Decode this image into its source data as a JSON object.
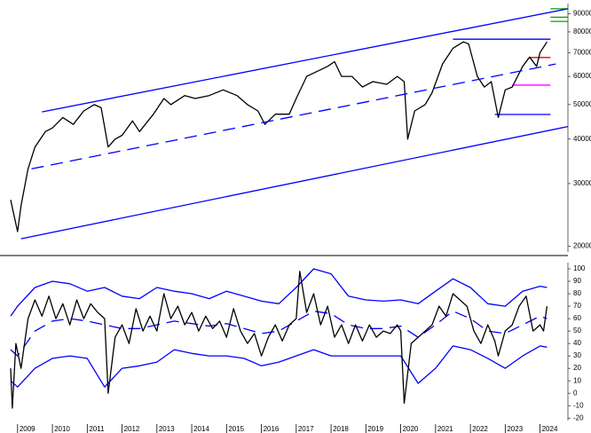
{
  "chart_data": [
    {
      "type": "line",
      "log_y": true,
      "xlim": [
        2008.75,
        2024.8
      ],
      "ylim": [
        19500,
        95000
      ],
      "yticks": [
        20000,
        30000,
        40000,
        50000,
        60000,
        70000,
        80000,
        90000
      ],
      "series": [
        {
          "color": "#000000",
          "dashed": false,
          "width": 1.3,
          "x": [
            2008.8,
            2009.0,
            2009.1,
            2009.3,
            2009.5,
            2009.8,
            2010.0,
            2010.3,
            2010.6,
            2010.9,
            2011.2,
            2011.4,
            2011.6,
            2011.8,
            2012.0,
            2012.3,
            2012.5,
            2012.9,
            2013.2,
            2013.4,
            2013.8,
            2014.1,
            2014.5,
            2014.9,
            2015.3,
            2015.6,
            2015.9,
            2016.1,
            2016.4,
            2016.8,
            2017.0,
            2017.3,
            2017.6,
            2017.9,
            2018.1,
            2018.3,
            2018.6,
            2018.9,
            2019.2,
            2019.6,
            2019.9,
            2020.1,
            2020.2,
            2020.4,
            2020.7,
            2020.9,
            2021.2,
            2021.5,
            2021.8,
            2021.95,
            2022.2,
            2022.4,
            2022.6,
            2022.8,
            2023.0,
            2023.2,
            2023.5,
            2023.7,
            2023.9,
            2024.0,
            2024.2
          ],
          "values": [
            27000,
            22000,
            26000,
            33000,
            38000,
            42000,
            43000,
            46000,
            44000,
            48000,
            50000,
            49000,
            38000,
            40000,
            41000,
            45000,
            42000,
            47000,
            52000,
            50000,
            53000,
            52000,
            53000,
            55000,
            53000,
            50000,
            48000,
            44000,
            47000,
            47000,
            52000,
            60000,
            62000,
            64000,
            66000,
            60000,
            60000,
            56000,
            58000,
            57000,
            60000,
            58000,
            40000,
            48000,
            50000,
            54000,
            65000,
            72000,
            75000,
            74000,
            60000,
            56000,
            58000,
            46000,
            55000,
            56000,
            64000,
            68000,
            64000,
            70000,
            75000
          ]
        },
        {
          "color": "#0000ff",
          "dashed": false,
          "width": 1.3,
          "x": [
            2009.7,
            2024.8
          ],
          "values": [
            47700,
            92900
          ]
        },
        {
          "color": "#0000ff",
          "dashed": false,
          "width": 1.3,
          "x": [
            2009.1,
            2024.8
          ],
          "values": [
            21000,
            43400
          ]
        },
        {
          "color": "#0000ff",
          "dashed": true,
          "width": 1.3,
          "x": [
            2009.4,
            2024.45
          ],
          "values": [
            33000,
            65000
          ]
        }
      ],
      "levels": [
        {
          "value": 76300,
          "xlim": [
            2021.5,
            2024.3
          ],
          "color": "#0000ff"
        },
        {
          "value": 67800,
          "xlim": [
            2023.7,
            2024.3
          ],
          "color": "#ff0000"
        },
        {
          "value": 56700,
          "xlim": [
            2023.2,
            2024.3
          ],
          "color": "#ff00ff"
        },
        {
          "value": 46900,
          "xlim": [
            2022.7,
            2024.3
          ],
          "color": "#0000ff"
        },
        {
          "value": 92900,
          "xlim": [
            2024.3,
            2024.8
          ],
          "color": "#00a000"
        },
        {
          "value": 88000,
          "xlim": [
            2024.3,
            2024.8
          ],
          "color": "#00a000"
        },
        {
          "value": 85600,
          "xlim": [
            2024.3,
            2024.8
          ],
          "color": "#00a000"
        }
      ]
    },
    {
      "type": "line",
      "log_y": false,
      "xlim": [
        2008.75,
        2024.8
      ],
      "ylim": [
        -22,
        105
      ],
      "yticks": [
        -20,
        -10,
        0,
        10,
        20,
        30,
        40,
        50,
        60,
        70,
        80,
        90,
        100
      ],
      "xticks": [
        2009,
        2010,
        2011,
        2012,
        2013,
        2014,
        2015,
        2016,
        2017,
        2018,
        2019,
        2020,
        2021,
        2022,
        2023,
        2024
      ],
      "series": [
        {
          "color": "#0000ff",
          "dashed": false,
          "width": 1.3,
          "x": [
            2008.8,
            2009.0,
            2009.5,
            2010,
            2010.5,
            2011,
            2011.5,
            2012,
            2012.5,
            2013,
            2013.5,
            2014,
            2014.5,
            2015,
            2015.5,
            2016,
            2016.5,
            2017,
            2017.5,
            2018,
            2018.5,
            2019,
            2019.5,
            2020,
            2020.5,
            2021,
            2021.5,
            2022,
            2022.5,
            2023,
            2023.5,
            2024,
            2024.2
          ],
          "values": [
            62,
            70,
            85,
            90,
            88,
            82,
            85,
            78,
            76,
            85,
            82,
            80,
            76,
            82,
            78,
            74,
            72,
            85,
            100,
            96,
            78,
            75,
            74,
            75,
            72,
            82,
            92,
            85,
            72,
            70,
            82,
            86,
            85
          ]
        },
        {
          "color": "#0000ff",
          "dashed": true,
          "width": 1.3,
          "x": [
            2008.8,
            2009.0,
            2009.5,
            2010,
            2010.5,
            2011,
            2011.5,
            2012,
            2012.5,
            2013,
            2013.5,
            2014,
            2014.5,
            2015,
            2015.5,
            2016,
            2016.5,
            2017,
            2017.5,
            2018,
            2018.5,
            2019,
            2019.5,
            2020,
            2020.5,
            2021,
            2021.5,
            2022,
            2022.5,
            2023,
            2023.5,
            2024,
            2024.2
          ],
          "values": [
            35,
            30,
            50,
            58,
            60,
            58,
            55,
            52,
            52,
            55,
            58,
            56,
            54,
            56,
            52,
            48,
            50,
            58,
            66,
            64,
            55,
            52,
            52,
            54,
            45,
            55,
            66,
            60,
            50,
            48,
            55,
            62,
            60
          ]
        },
        {
          "color": "#0000ff",
          "dashed": false,
          "width": 1.3,
          "x": [
            2008.8,
            2009.0,
            2009.5,
            2010,
            2010.5,
            2011,
            2011.5,
            2012,
            2012.5,
            2013,
            2013.5,
            2014,
            2014.5,
            2015,
            2015.5,
            2016,
            2016.5,
            2017,
            2017.5,
            2018,
            2018.5,
            2019,
            2019.5,
            2020,
            2020.5,
            2021,
            2021.5,
            2022,
            2022.5,
            2023,
            2023.5,
            2024,
            2024.2
          ],
          "values": [
            10,
            5,
            20,
            28,
            30,
            28,
            5,
            20,
            22,
            25,
            35,
            32,
            30,
            30,
            28,
            22,
            25,
            30,
            35,
            30,
            30,
            30,
            30,
            30,
            8,
            20,
            38,
            35,
            28,
            20,
            30,
            38,
            37
          ]
        },
        {
          "color": "#000000",
          "dashed": false,
          "width": 1.3,
          "x": [
            2008.8,
            2008.85,
            2008.95,
            2009.1,
            2009.3,
            2009.5,
            2009.7,
            2009.9,
            2010.1,
            2010.3,
            2010.5,
            2010.7,
            2010.9,
            2011.1,
            2011.3,
            2011.5,
            2011.6,
            2011.8,
            2012.0,
            2012.2,
            2012.4,
            2012.6,
            2012.8,
            2013.0,
            2013.2,
            2013.4,
            2013.6,
            2013.8,
            2014.0,
            2014.2,
            2014.4,
            2014.6,
            2014.8,
            2015.0,
            2015.2,
            2015.4,
            2015.6,
            2015.8,
            2016.0,
            2016.2,
            2016.4,
            2016.6,
            2016.8,
            2017.0,
            2017.1,
            2017.3,
            2017.5,
            2017.7,
            2017.9,
            2018.1,
            2018.3,
            2018.5,
            2018.7,
            2018.9,
            2019.1,
            2019.3,
            2019.5,
            2019.7,
            2019.9,
            2020.0,
            2020.1,
            2020.3,
            2020.5,
            2020.7,
            2020.9,
            2021.1,
            2021.3,
            2021.5,
            2021.7,
            2021.9,
            2022.1,
            2022.3,
            2022.5,
            2022.7,
            2022.8,
            2023.0,
            2023.2,
            2023.4,
            2023.6,
            2023.8,
            2024.0,
            2024.1,
            2024.2
          ],
          "values": [
            20,
            -12,
            40,
            20,
            60,
            75,
            62,
            78,
            60,
            72,
            55,
            75,
            60,
            72,
            65,
            60,
            0,
            45,
            55,
            40,
            68,
            50,
            62,
            50,
            80,
            60,
            70,
            55,
            65,
            50,
            62,
            52,
            58,
            45,
            68,
            50,
            40,
            48,
            30,
            45,
            55,
            42,
            55,
            60,
            98,
            65,
            80,
            55,
            70,
            45,
            55,
            40,
            55,
            42,
            55,
            45,
            50,
            48,
            55,
            50,
            -8,
            40,
            45,
            50,
            55,
            70,
            62,
            80,
            75,
            70,
            50,
            40,
            55,
            42,
            30,
            50,
            55,
            70,
            78,
            50,
            55,
            50,
            70
          ]
        }
      ]
    }
  ]
}
